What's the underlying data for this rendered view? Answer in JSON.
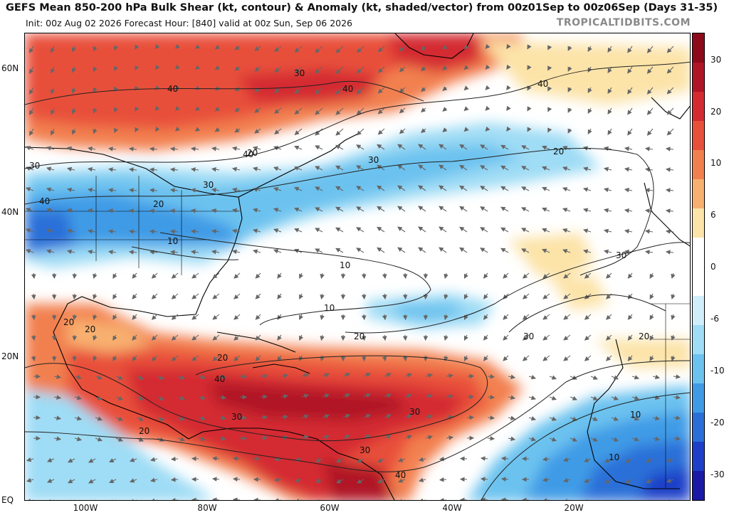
{
  "header": {
    "title": "GEFS Mean 850-200 hPa Bulk Shear (kt, contour) & Anomaly (kt, shaded/vector) from 00z01Sep to 00z06Sep (Days 31-35)",
    "subtitle": "Init: 00z Aug 02 2026   Forecast Hour: [840]   valid at 00z Sun, Sep 06 2026",
    "brand": "TROPICALTIDBITS.COM"
  },
  "axes": {
    "lat_labels": [
      "60N",
      "40N",
      "20N",
      "EQ"
    ],
    "lon_labels": [
      "100W",
      "80W",
      "60W",
      "40W",
      "20W"
    ]
  },
  "colorbar": {
    "labels": [
      "30",
      "20",
      "10",
      "6",
      "0",
      "-6",
      "-10",
      "-20",
      "-30"
    ],
    "colors": [
      "#8c0a1a",
      "#b01427",
      "#d42a30",
      "#e8503a",
      "#f2804f",
      "#f8b070",
      "#fce3a8",
      "#ffffff",
      "#ffffff",
      "#cfeefa",
      "#9fdcf5",
      "#6cc2ef",
      "#3f9be6",
      "#2a6fd8",
      "#1e3fc8",
      "#1a1aa6"
    ]
  },
  "map": {
    "contour_labels": [
      "40",
      "30",
      "40",
      "30",
      "30",
      "40",
      "20",
      "40",
      "30",
      "20",
      "10",
      "10",
      "10",
      "20",
      "30",
      "20",
      "20",
      "20",
      "20",
      "40",
      "30",
      "20",
      "30",
      "30",
      "40",
      "20",
      "10",
      "10",
      "30",
      "40"
    ]
  }
}
